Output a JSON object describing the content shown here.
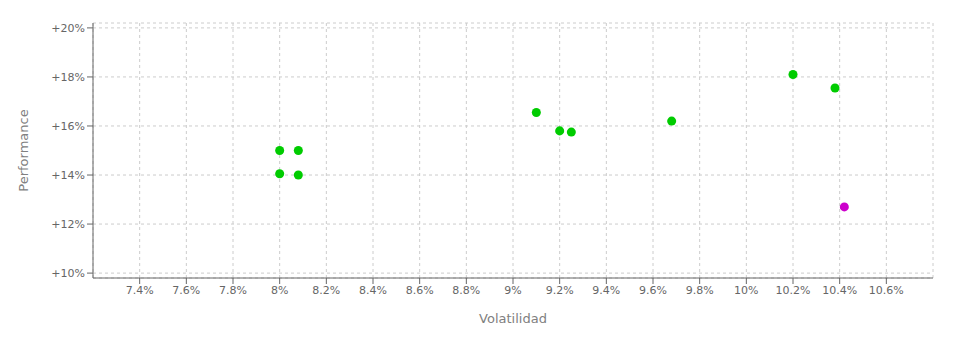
{
  "chart_data": {
    "type": "scatter",
    "xlabel": "Volatilidad",
    "ylabel": "Performance",
    "xlim": [
      0.072,
      0.108
    ],
    "ylim": [
      0.098,
      0.202
    ],
    "xticks": [
      {
        "value": 0.074,
        "label": "7.4%"
      },
      {
        "value": 0.076,
        "label": "7.6%"
      },
      {
        "value": 0.078,
        "label": "7.8%"
      },
      {
        "value": 0.08,
        "label": "8%"
      },
      {
        "value": 0.082,
        "label": "8.2%"
      },
      {
        "value": 0.084,
        "label": "8.4%"
      },
      {
        "value": 0.086,
        "label": "8.6%"
      },
      {
        "value": 0.088,
        "label": "8.8%"
      },
      {
        "value": 0.09,
        "label": "9%"
      },
      {
        "value": 0.092,
        "label": "9.2%"
      },
      {
        "value": 0.094,
        "label": "9.4%"
      },
      {
        "value": 0.096,
        "label": "9.6%"
      },
      {
        "value": 0.098,
        "label": "9.8%"
      },
      {
        "value": 0.1,
        "label": "10%"
      },
      {
        "value": 0.102,
        "label": "10.2%"
      },
      {
        "value": 0.104,
        "label": "10.4%"
      },
      {
        "value": 0.106,
        "label": "10.6%"
      }
    ],
    "yticks": [
      {
        "value": 0.1,
        "label": "+10%"
      },
      {
        "value": 0.12,
        "label": "+12%"
      },
      {
        "value": 0.14,
        "label": "+14%"
      },
      {
        "value": 0.16,
        "label": "+16%"
      },
      {
        "value": 0.18,
        "label": "+18%"
      },
      {
        "value": 0.2,
        "label": "+20%"
      }
    ],
    "grid": true,
    "series": [
      {
        "color": "#00cc00",
        "x": [
          0.08,
          0.0808,
          0.08,
          0.0808,
          0.091,
          0.092,
          0.0925,
          0.0968,
          0.102,
          0.1038
        ],
        "values": [
          0.15,
          0.15,
          0.1405,
          0.14,
          0.1655,
          0.158,
          0.1575,
          0.162,
          0.181,
          0.1755
        ]
      },
      {
        "color": "#cc00cc",
        "x": [
          0.1042
        ],
        "values": [
          0.127
        ]
      }
    ]
  }
}
